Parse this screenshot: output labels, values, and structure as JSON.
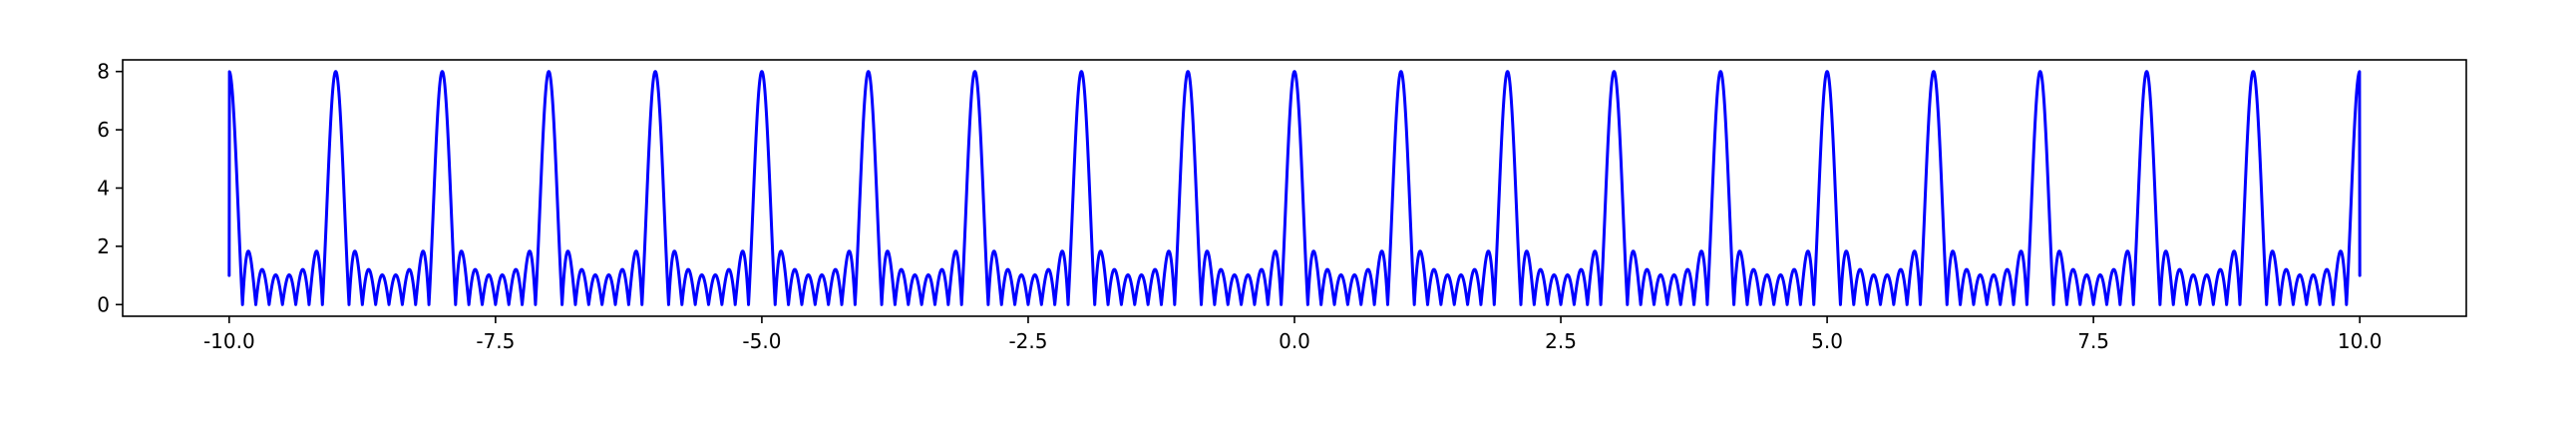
{
  "chart_data": {
    "type": "line",
    "title": "",
    "xlabel": "",
    "ylabel": "",
    "xlim": [
      -11.0,
      11.0
    ],
    "ylim": [
      -0.4,
      8.4
    ],
    "x_ticks": [
      -10.0,
      -7.5,
      -5.0,
      -2.5,
      0.0,
      2.5,
      5.0,
      7.5,
      10.0
    ],
    "x_tick_labels": [
      "-10.0",
      "-7.5",
      "-5.0",
      "-2.5",
      "0.0",
      "2.5",
      "5.0",
      "7.5",
      "10.0"
    ],
    "y_ticks": [
      0,
      2,
      4,
      6,
      8
    ],
    "y_tick_labels": [
      "0",
      "2",
      "4",
      "6",
      "8"
    ],
    "grid": false,
    "legend": "none",
    "series": [
      {
        "color": "#0000ff",
        "x_range": [
          -10.0,
          10.0
        ],
        "period": 1.0,
        "peak_value": 8.0,
        "endpoint_value": 1.0,
        "peak_x": [
          -10,
          -9,
          -8,
          -7,
          -6,
          -5,
          -4,
          -3,
          -2,
          -1,
          0,
          1,
          2,
          3,
          4,
          5,
          6,
          7,
          8,
          9,
          10
        ]
      }
    ]
  }
}
